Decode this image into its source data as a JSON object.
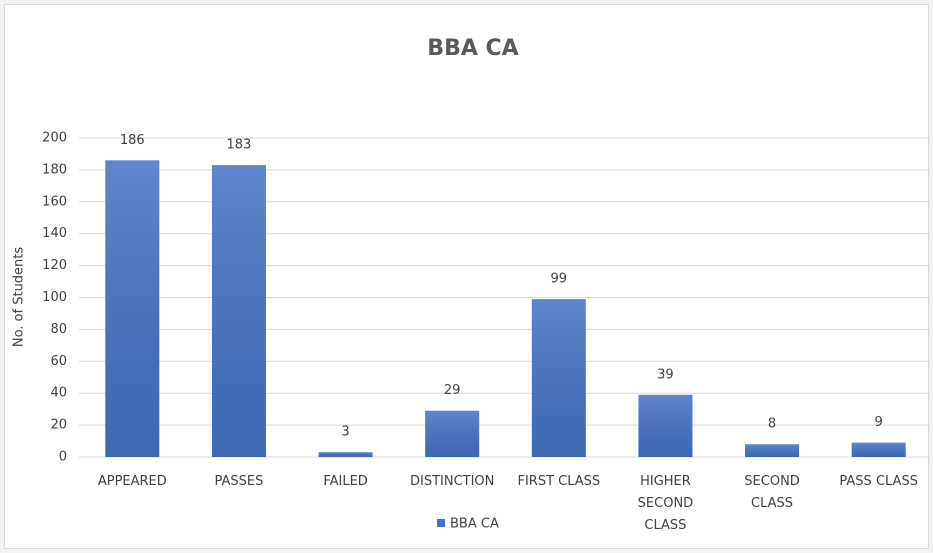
{
  "chart_data": {
    "type": "bar",
    "title": "BBA CA",
    "y_label": "No. of Students",
    "categories": [
      "APPEARED",
      "PASSES",
      "FAILED",
      "DISTINCTION",
      "FIRST CLASS",
      "HIGHER SECOND CLASS",
      "SECOND CLASS",
      "PASS CLASS"
    ],
    "series": [
      {
        "name": "BBA CA",
        "color": "#4472c4",
        "values": [
          186,
          183,
          3,
          29,
          99,
          39,
          8,
          9
        ]
      }
    ],
    "ylim": [
      0,
      200
    ],
    "yticks": [
      0,
      20,
      40,
      60,
      80,
      100,
      120,
      140,
      160,
      180,
      200
    ],
    "grid": true,
    "legend": "bottom"
  }
}
